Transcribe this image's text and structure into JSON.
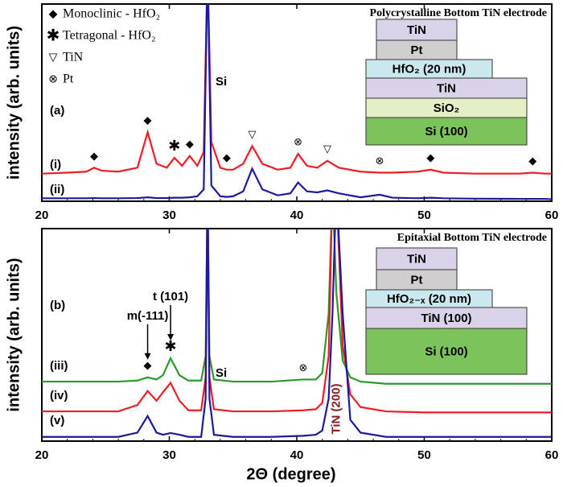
{
  "chart_data": [
    {
      "type": "line",
      "title": "Polycrystalline Bottom TiN electrode",
      "ylabel": "intensity (arb. units)",
      "panel_label": "(a)",
      "xlim": [
        20,
        60
      ],
      "xticks": [
        20,
        30,
        40,
        50,
        60
      ],
      "ylim": [
        0,
        100
      ],
      "x": [
        20,
        22,
        23.5,
        24.1,
        24.7,
        26,
        27.5,
        28.3,
        29,
        29.8,
        30.4,
        31,
        31.6,
        32.2,
        32.7,
        33,
        33.3,
        34,
        34.5,
        35,
        35.8,
        36.5,
        37.3,
        38.5,
        39.5,
        40.1,
        40.8,
        41.6,
        42.4,
        43.3,
        45,
        46.5,
        47.5,
        49.5,
        50.5,
        51.5,
        54,
        57.5,
        58.5,
        59.5,
        60
      ],
      "series": [
        {
          "name": "(i)",
          "color": "#ee1c25",
          "values": [
            14,
            14.5,
            15,
            17,
            15.5,
            15,
            17,
            35,
            19,
            17,
            22,
            18,
            23,
            18,
            25,
            120,
            30,
            17,
            16,
            16,
            19,
            28,
            19,
            16,
            17,
            24,
            18,
            17,
            20.5,
            17,
            15,
            14.5,
            14.5,
            15,
            16,
            14.5,
            14,
            14,
            14.5,
            14,
            14
          ]
        },
        {
          "name": "(ii)",
          "color": "#1a1a9a",
          "values": [
            1.5,
            1.5,
            1.5,
            1.6,
            1.5,
            1.5,
            1.6,
            2,
            1.6,
            1.6,
            1.8,
            1.8,
            2,
            2.5,
            6,
            120,
            8,
            2.5,
            2.2,
            2.5,
            5,
            16.5,
            6,
            3,
            4,
            9.5,
            5,
            4.5,
            5.5,
            4,
            2,
            3.3,
            1.8,
            1.5,
            1.8,
            1.5,
            1.3,
            1.2,
            1.2,
            1.2,
            1
          ]
        }
      ],
      "legend": [
        {
          "symbol": "◆",
          "label": "Monoclinic - HfO₂"
        },
        {
          "symbol": "✱",
          "label": "Tetragonal  - HfO₂"
        },
        {
          "symbol": "▽",
          "label": "TiN"
        },
        {
          "symbol": "⊗",
          "label": "Pt"
        }
      ],
      "markers": [
        {
          "symbol": "◆",
          "x": 24.1
        },
        {
          "symbol": "◆",
          "x": 28.3
        },
        {
          "symbol": "✱",
          "x": 30.4
        },
        {
          "symbol": "◆",
          "x": 31.6
        },
        {
          "symbol": "◆",
          "x": 34.5
        },
        {
          "symbol": "▽",
          "x": 36.5
        },
        {
          "symbol": "⊗",
          "x": 40.1
        },
        {
          "symbol": "▽",
          "x": 42.4
        },
        {
          "symbol": "⊗",
          "x": 46.5
        },
        {
          "symbol": "◆",
          "x": 50.5
        },
        {
          "symbol": "◆",
          "x": 58.5
        }
      ],
      "annotations": [
        {
          "text": "Si",
          "x": 33
        }
      ],
      "stack": [
        "TiN",
        "Pt",
        "HfO₂ (20 nm)",
        "TiN",
        "SiO₂",
        "Si (100)"
      ]
    },
    {
      "type": "line",
      "title": "Epitaxial Bottom TiN electrode",
      "ylabel": "intensity (arb. units)",
      "xlabel": "2Θ (degree)",
      "panel_label": "(b)",
      "xlim": [
        20,
        60
      ],
      "xticks": [
        20,
        30,
        40,
        50,
        60
      ],
      "ylim": [
        0,
        100
      ],
      "x": [
        20,
        24,
        26,
        27.5,
        28.3,
        29,
        29.5,
        30.1,
        30.8,
        31.5,
        32.5,
        32.85,
        33,
        33.15,
        33.5,
        35,
        38,
        40.5,
        41.5,
        42,
        42.5,
        42.8,
        43.1,
        43.6,
        44.2,
        45,
        47,
        50,
        55,
        60
      ],
      "series": [
        {
          "name": "(iii)",
          "color": "#2a9a2a",
          "values": [
            28,
            28,
            28,
            28.5,
            30,
            29,
            31,
            39,
            31,
            28.5,
            28.5,
            40,
            120,
            40,
            29,
            28,
            28,
            29,
            29,
            32,
            60,
            120,
            70,
            38,
            30,
            28,
            27,
            27,
            27,
            27
          ]
        },
        {
          "name": "(iv)",
          "color": "#ee1c25",
          "values": [
            14,
            14,
            14,
            17,
            23.6,
            19,
            23,
            27.4,
            19,
            14.5,
            14.5,
            30,
            120,
            30,
            15,
            14,
            14,
            14.5,
            15,
            18,
            40,
            120,
            120,
            45,
            22,
            16,
            14,
            13.5,
            13.5,
            13.5
          ]
        },
        {
          "name": "(v)",
          "color": "#1a1a9a",
          "values": [
            2,
            2,
            2,
            4,
            11.8,
            4,
            3,
            3.8,
            3,
            2,
            2,
            20,
            120,
            20,
            3,
            2,
            2,
            2.5,
            3,
            5,
            20,
            60,
            120,
            60,
            10,
            4,
            2,
            2,
            2,
            2
          ]
        }
      ],
      "markers": [
        {
          "symbol": "◆",
          "x": 28.3,
          "label": "m(-111)"
        },
        {
          "symbol": "✱",
          "x": 30.1,
          "label": "t (101)"
        },
        {
          "symbol": "⊗",
          "x": 40.5
        }
      ],
      "annotations": [
        {
          "text": "Si",
          "x": 33
        },
        {
          "text": "TiN (200)",
          "x": 42.8
        }
      ],
      "stack": [
        "TiN",
        "Pt",
        "HfO₂₋ₓ (20 nm)",
        "TiN (100)",
        "Si (100)"
      ]
    }
  ]
}
